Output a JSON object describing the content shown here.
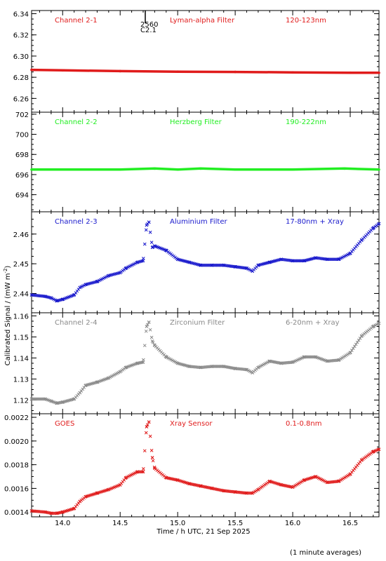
{
  "figure": {
    "xlabel": "Time / h UTC, 21 Sep 2025",
    "ylabel": "Calibrated Signal / (mW m",
    "ylabel_sup": "-2",
    "ylabel_close": ")",
    "footnote": "(1 minute averages)",
    "marker_top": "2560",
    "marker_bottom": "C2.1"
  },
  "chart_data": [
    {
      "type": "scatter",
      "name": "Channel 2-1",
      "filter": "Lyman-alpha Filter",
      "band": "120-123nm",
      "color": "#e01b1b",
      "xlim": [
        13.73,
        16.75
      ],
      "ylim": [
        6.247,
        6.343
      ],
      "yticks": [
        6.26,
        6.28,
        6.3,
        6.32,
        6.34
      ],
      "ytick_labels": [
        "6.26",
        "6.28",
        "6.30",
        "6.32",
        "6.34"
      ],
      "marker": "line",
      "x": [
        13.73,
        14.0,
        14.5,
        15.0,
        15.5,
        16.0,
        16.5,
        16.75
      ],
      "y": [
        6.287,
        6.2865,
        6.2858,
        6.2853,
        6.285,
        6.2846,
        6.2843,
        6.2842
      ]
    },
    {
      "type": "scatter",
      "name": "Channel 2-2",
      "filter": "Herzberg Filter",
      "band": "190-222nm",
      "color": "#22ee22",
      "xlim": [
        13.73,
        16.75
      ],
      "ylim": [
        692.3,
        702.2
      ],
      "yticks": [
        694,
        696,
        698,
        700,
        702
      ],
      "ytick_labels": [
        "694",
        "696",
        "698",
        "700",
        "702"
      ],
      "marker": "line",
      "x": [
        13.73,
        14.0,
        14.5,
        14.8,
        15.0,
        15.2,
        15.5,
        16.0,
        16.45,
        16.75
      ],
      "y": [
        696.5,
        696.5,
        696.5,
        696.6,
        696.5,
        696.6,
        696.5,
        696.5,
        696.6,
        696.5
      ]
    },
    {
      "type": "scatter",
      "name": "Channel 2-3",
      "filter": "Aluminium Filter",
      "band": "17-80nm + Xray",
      "color": "#1818cc",
      "xlim": [
        13.73,
        16.75
      ],
      "ylim": [
        2.4335,
        2.4675
      ],
      "yticks": [
        2.44,
        2.45,
        2.46
      ],
      "ytick_labels": [
        "2.44",
        "2.45",
        "2.46"
      ],
      "marker": "x",
      "x": [
        13.73,
        13.85,
        13.9,
        13.95,
        14.0,
        14.1,
        14.15,
        14.2,
        14.3,
        14.4,
        14.5,
        14.55,
        14.65,
        14.7,
        14.73,
        14.75,
        14.78,
        14.8,
        14.9,
        15.0,
        15.1,
        15.2,
        15.3,
        15.4,
        15.5,
        15.6,
        15.65,
        15.7,
        15.8,
        15.9,
        16.0,
        16.1,
        16.2,
        16.3,
        16.4,
        16.5,
        16.6,
        16.7,
        16.75
      ],
      "y": [
        2.4395,
        2.439,
        2.4385,
        2.4375,
        2.438,
        2.4395,
        2.442,
        2.443,
        2.444,
        2.446,
        2.447,
        2.4485,
        2.4505,
        2.451,
        2.463,
        2.464,
        2.4555,
        2.456,
        2.4545,
        2.4515,
        2.4505,
        2.4495,
        2.4495,
        2.4495,
        2.449,
        2.4485,
        2.4475,
        2.4495,
        2.4505,
        2.4515,
        2.451,
        2.451,
        2.452,
        2.4515,
        2.4515,
        2.4535,
        2.458,
        2.462,
        2.4635
      ]
    },
    {
      "type": "scatter",
      "name": "Channel 2-4",
      "filter": "Zirconium Filter",
      "band": "6-20nm + Xray",
      "color": "#8a8a8a",
      "xlim": [
        13.73,
        16.75
      ],
      "ylim": [
        1.1135,
        1.1615
      ],
      "yticks": [
        1.12,
        1.13,
        1.14,
        1.15,
        1.16
      ],
      "ytick_labels": [
        "1.12",
        "1.13",
        "1.14",
        "1.15",
        "1.16"
      ],
      "marker": "x",
      "x": [
        13.73,
        13.85,
        13.9,
        13.95,
        14.0,
        14.1,
        14.15,
        14.2,
        14.3,
        14.4,
        14.5,
        14.55,
        14.65,
        14.7,
        14.73,
        14.75,
        14.78,
        14.8,
        14.9,
        15.0,
        15.1,
        15.2,
        15.3,
        15.4,
        15.5,
        15.6,
        15.65,
        15.7,
        15.8,
        15.9,
        16.0,
        16.1,
        16.2,
        16.3,
        16.4,
        16.5,
        16.6,
        16.7,
        16.75
      ],
      "y": [
        1.1205,
        1.1205,
        1.1195,
        1.1185,
        1.119,
        1.1205,
        1.1235,
        1.127,
        1.1285,
        1.1305,
        1.1335,
        1.1355,
        1.1375,
        1.138,
        1.155,
        1.157,
        1.148,
        1.146,
        1.1405,
        1.1375,
        1.136,
        1.1355,
        1.136,
        1.136,
        1.135,
        1.1345,
        1.133,
        1.1355,
        1.1385,
        1.1375,
        1.138,
        1.1405,
        1.1405,
        1.1385,
        1.139,
        1.1425,
        1.1505,
        1.155,
        1.1565
      ]
    },
    {
      "type": "scatter",
      "name": "GOES",
      "filter": "Xray Sensor",
      "band": "0.1-0.8nm",
      "color": "#e01b1b",
      "xlim": [
        13.73,
        16.75
      ],
      "ylim": [
        0.00136,
        0.00223
      ],
      "yticks": [
        0.0014,
        0.0016,
        0.0018,
        0.002,
        0.0022
      ],
      "ytick_labels": [
        "0.0014",
        "0.0016",
        "0.0018",
        "0.0020",
        "0.0022"
      ],
      "marker": "x",
      "x": [
        13.73,
        13.85,
        13.9,
        13.95,
        14.0,
        14.1,
        14.15,
        14.2,
        14.3,
        14.4,
        14.5,
        14.55,
        14.65,
        14.7,
        14.73,
        14.75,
        14.78,
        14.8,
        14.9,
        15.0,
        15.1,
        15.2,
        15.3,
        15.4,
        15.5,
        15.6,
        15.65,
        15.7,
        15.8,
        15.9,
        16.0,
        16.1,
        16.2,
        16.3,
        16.4,
        16.5,
        16.6,
        16.7,
        16.75
      ],
      "y": [
        0.00141,
        0.0014,
        0.00139,
        0.00139,
        0.0014,
        0.00143,
        0.00149,
        0.00153,
        0.00156,
        0.00159,
        0.00163,
        0.00169,
        0.00174,
        0.00174,
        0.00212,
        0.00216,
        0.00186,
        0.00177,
        0.00169,
        0.00167,
        0.00164,
        0.00162,
        0.0016,
        0.00158,
        0.00157,
        0.00156,
        0.00156,
        0.00159,
        0.00166,
        0.00163,
        0.00161,
        0.00167,
        0.0017,
        0.00165,
        0.00166,
        0.00172,
        0.00184,
        0.00191,
        0.00193
      ]
    }
  ],
  "xaxis": {
    "ticks": [
      14.0,
      14.5,
      15.0,
      15.5,
      16.0,
      16.5
    ],
    "tick_labels": [
      "14.0",
      "14.5",
      "15.0",
      "15.5",
      "16.0",
      "16.5"
    ]
  }
}
